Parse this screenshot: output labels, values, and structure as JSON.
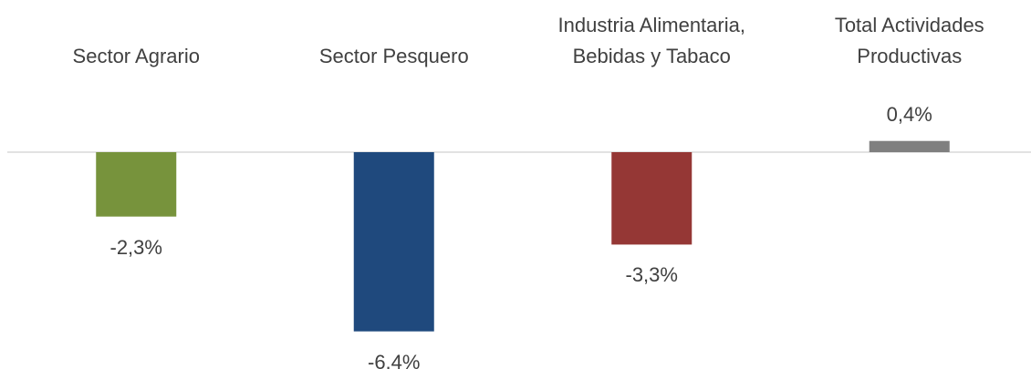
{
  "chart_data": {
    "type": "bar",
    "categories": [
      "Sector Agrario",
      "Sector Pesquero",
      "Industria Alimentaria,\nBebidas y Tabaco",
      "Total Actividades\nProductivas"
    ],
    "values": [
      -2.3,
      -6.4,
      -3.3,
      0.4
    ],
    "value_labels": [
      "-2,3%",
      "-6,4%",
      "-3,3%",
      "0,4%"
    ],
    "colors": [
      "#77933c",
      "#1f497d",
      "#953735",
      "#7f7f7f"
    ]
  }
}
